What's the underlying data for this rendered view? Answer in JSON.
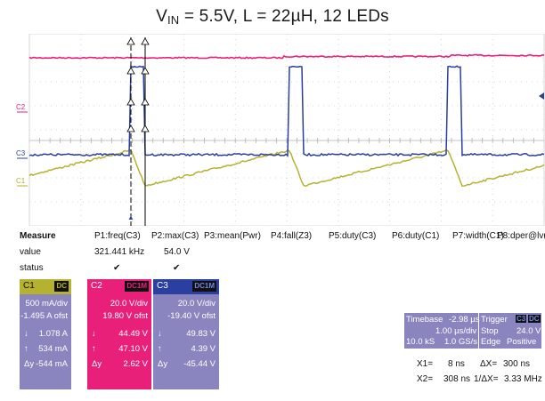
{
  "title": {
    "main": "V",
    "sub": "IN",
    "rest": " = 5.5V, L = 22µH, 12 LEDs"
  },
  "colors": {
    "c1": "#b5b22f",
    "c2": "#e8207a",
    "c3": "#2b3fa0",
    "math": "#8a7fc4",
    "grid": "#c9c9c9",
    "panel": "#8a85be",
    "panel_dark": "#6e6aa8"
  },
  "scope": {
    "channel_labels": [
      "C2",
      "C3",
      "C1"
    ],
    "trigger_marker": "▲"
  },
  "measure": {
    "label_header": "Measure",
    "label_value": "value",
    "label_status": "status",
    "params": [
      {
        "name": "P1:freq(C3)",
        "value": "321.441 kHz",
        "status": "✔"
      },
      {
        "name": "P2:max(C3)",
        "value": "54.0 V",
        "status": "✔"
      },
      {
        "name": "P3:mean(Pwr)",
        "value": "",
        "status": ""
      },
      {
        "name": "P4:fall(Z3)",
        "value": "",
        "status": ""
      },
      {
        "name": "P5:duty(C3)",
        "value": "",
        "status": ""
      },
      {
        "name": "P6:duty(C1)",
        "value": "",
        "status": ""
      },
      {
        "name": "P7:width(C1)",
        "value": "",
        "status": ""
      },
      {
        "name": "P8:dper@lv(...",
        "value": "",
        "status": ""
      }
    ]
  },
  "channels": [
    {
      "name": "C1",
      "coupling": "DC",
      "scale": "500 mA/div",
      "offset": "-1.495 A ofst",
      "down": "1.078 A",
      "up": "534 mA",
      "delta": "-544 mA"
    },
    {
      "name": "C2",
      "coupling": "DC1M",
      "scale": "20.0 V/div",
      "offset": "19.80 V ofst",
      "down": "44.49 V",
      "up": "47.10 V",
      "delta": "2.62 V"
    },
    {
      "name": "C3",
      "coupling": "DC1M",
      "scale": "20.0 V/div",
      "offset": "-19.40 V ofst",
      "down": "49.83 V",
      "up": "4.39 V",
      "delta": "-45.44 V"
    }
  ],
  "glyphs": {
    "down": "↓",
    "up": "↑",
    "delta": "Δy"
  },
  "timebase": {
    "label": "Timebase",
    "delay": "-2.98 µs",
    "per_div": "1.00 µs/div",
    "samples": "10.0 kS",
    "rate": "1.0 GS/s"
  },
  "trigger": {
    "label": "Trigger",
    "source": "C3",
    "coupling": "DC",
    "mode": "Stop",
    "level": "24.0 V",
    "type": "Edge",
    "slope": "Positive"
  },
  "cursors": {
    "x1_label": "X1=",
    "x1": "8 ns",
    "dx_label": "ΔX=",
    "dx": "300 ns",
    "x2_label": "X2=",
    "x2": "308 ns",
    "inv_label": "1/ΔX=",
    "inv": "3.33 MHz"
  }
}
